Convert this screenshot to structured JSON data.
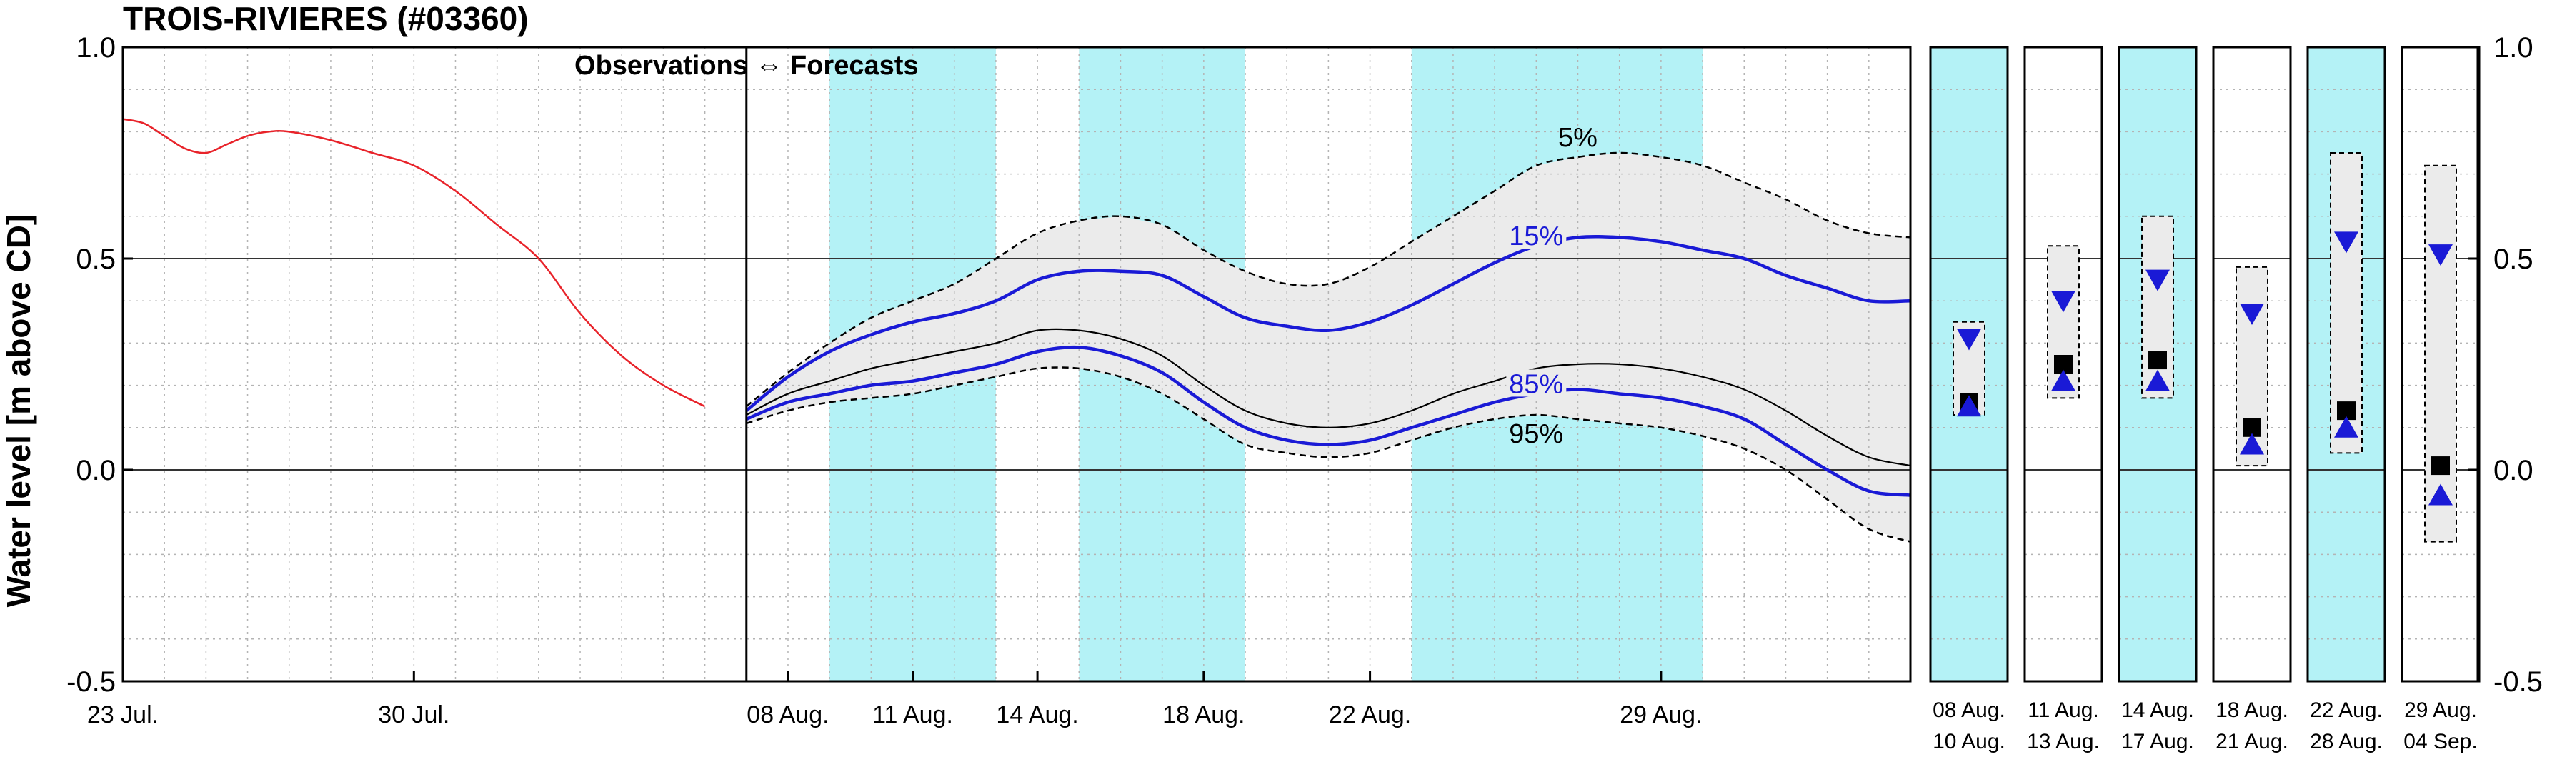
{
  "chart_data": {
    "type": "line",
    "title": "TROIS-RIVIERES (#03360)",
    "ylabel": "Water level [m above CD]",
    "ylim": [
      -0.5,
      1.0
    ],
    "yticks": [
      "1.0",
      "0.5",
      "0.0",
      "-0.5"
    ],
    "yticks_right": [
      "1.0",
      "0.5",
      "0.0",
      "-0.5"
    ],
    "x_ticks": [
      {
        "day": 0,
        "label": "23 Jul."
      },
      {
        "day": 7,
        "label": "30 Jul."
      },
      {
        "day": 16,
        "label": "08 Aug."
      },
      {
        "day": 19,
        "label": "11 Aug."
      },
      {
        "day": 22,
        "label": "14 Aug."
      },
      {
        "day": 26,
        "label": "18 Aug."
      },
      {
        "day": 30,
        "label": "22 Aug."
      },
      {
        "day": 37,
        "label": "29 Aug."
      }
    ],
    "x_range": [
      0,
      43
    ],
    "now_day": 15,
    "divider_label": "Observations ⇔ Forecasts",
    "grid": true,
    "shaded_periods": [
      [
        17,
        21
      ],
      [
        23,
        27
      ],
      [
        31,
        38
      ]
    ],
    "observations": {
      "color": "#e8232a",
      "x": [
        0,
        0.5,
        1,
        1.5,
        2,
        2.5,
        3,
        3.5,
        4,
        5,
        6,
        7,
        8,
        9,
        10,
        11,
        12,
        13,
        14
      ],
      "y": [
        0.83,
        0.82,
        0.79,
        0.76,
        0.75,
        0.77,
        0.79,
        0.8,
        0.8,
        0.78,
        0.75,
        0.72,
        0.66,
        0.58,
        0.5,
        0.37,
        0.27,
        0.2,
        0.15
      ]
    },
    "forecast_x": [
      15,
      16,
      17,
      18,
      19,
      20,
      21,
      22,
      23,
      24,
      25,
      26,
      27,
      28,
      29,
      30,
      31,
      32,
      33,
      34,
      35,
      36,
      37,
      38,
      39,
      40,
      41,
      42,
      43
    ],
    "forecast_series": [
      {
        "name": "5%",
        "style": "dashed",
        "color": "#000000",
        "values": [
          0.15,
          0.23,
          0.3,
          0.36,
          0.4,
          0.44,
          0.5,
          0.56,
          0.59,
          0.6,
          0.58,
          0.52,
          0.47,
          0.44,
          0.44,
          0.48,
          0.54,
          0.6,
          0.66,
          0.72,
          0.74,
          0.75,
          0.74,
          0.72,
          0.68,
          0.64,
          0.59,
          0.56,
          0.55
        ]
      },
      {
        "name": "15%",
        "style": "solid",
        "color": "#1a1ad6",
        "values": [
          0.14,
          0.22,
          0.28,
          0.32,
          0.35,
          0.37,
          0.4,
          0.45,
          0.47,
          0.47,
          0.46,
          0.41,
          0.36,
          0.34,
          0.33,
          0.35,
          0.39,
          0.44,
          0.49,
          0.53,
          0.55,
          0.55,
          0.54,
          0.52,
          0.5,
          0.46,
          0.43,
          0.4,
          0.4
        ]
      },
      {
        "name": "50%",
        "style": "thin",
        "color": "#000000",
        "values": [
          0.13,
          0.18,
          0.21,
          0.24,
          0.26,
          0.28,
          0.3,
          0.33,
          0.33,
          0.31,
          0.27,
          0.2,
          0.14,
          0.11,
          0.1,
          0.11,
          0.14,
          0.18,
          0.21,
          0.24,
          0.25,
          0.25,
          0.24,
          0.22,
          0.19,
          0.14,
          0.08,
          0.03,
          0.01
        ]
      },
      {
        "name": "85%",
        "style": "solid",
        "color": "#1a1ad6",
        "values": [
          0.12,
          0.16,
          0.18,
          0.2,
          0.21,
          0.23,
          0.25,
          0.28,
          0.29,
          0.27,
          0.23,
          0.16,
          0.1,
          0.07,
          0.06,
          0.07,
          0.1,
          0.13,
          0.16,
          0.18,
          0.19,
          0.18,
          0.17,
          0.15,
          0.12,
          0.06,
          0.0,
          -0.05,
          -0.06
        ]
      },
      {
        "name": "95%",
        "style": "dashed",
        "color": "#000000",
        "values": [
          0.11,
          0.14,
          0.16,
          0.17,
          0.18,
          0.2,
          0.22,
          0.24,
          0.24,
          0.22,
          0.18,
          0.12,
          0.06,
          0.04,
          0.03,
          0.04,
          0.07,
          0.1,
          0.12,
          0.13,
          0.12,
          0.11,
          0.1,
          0.08,
          0.05,
          0.0,
          -0.07,
          -0.14,
          -0.17
        ]
      }
    ],
    "percentile_labels": [
      {
        "text": "5%",
        "series": 0,
        "color": "#000000"
      },
      {
        "text": "15%",
        "series": 1,
        "color": "#1a1ad6"
      },
      {
        "text": "85%",
        "series": 3,
        "color": "#1a1ad6"
      },
      {
        "text": "95%",
        "series": 4,
        "color": "#000000"
      }
    ],
    "summary_panels": [
      {
        "line1": "08 Aug.",
        "line2": "10 Aug.",
        "shaded": true,
        "box": [
          0.13,
          0.35
        ],
        "square": 0.16,
        "down_triangle": 0.31,
        "up_triangle": 0.15
      },
      {
        "line1": "11 Aug.",
        "line2": "13 Aug.",
        "shaded": false,
        "box": [
          0.17,
          0.53
        ],
        "square": 0.25,
        "down_triangle": 0.4,
        "up_triangle": 0.21
      },
      {
        "line1": "14 Aug.",
        "line2": "17 Aug.",
        "shaded": true,
        "box": [
          0.17,
          0.6
        ],
        "square": 0.26,
        "down_triangle": 0.45,
        "up_triangle": 0.21
      },
      {
        "line1": "18 Aug.",
        "line2": "21 Aug.",
        "shaded": false,
        "box": [
          0.01,
          0.48
        ],
        "square": 0.1,
        "down_triangle": 0.37,
        "up_triangle": 0.06
      },
      {
        "line1": "22 Aug.",
        "line2": "28 Aug.",
        "shaded": true,
        "box": [
          0.04,
          0.75
        ],
        "square": 0.14,
        "down_triangle": 0.54,
        "up_triangle": 0.1
      },
      {
        "line1": "29 Aug.",
        "line2": "04 Sep.",
        "shaded": false,
        "box": [
          -0.17,
          0.72
        ],
        "square": 0.01,
        "down_triangle": 0.51,
        "up_triangle": -0.06
      }
    ],
    "colors": {
      "shade": "#b4f2f6",
      "band": "#ebebeb",
      "obs": "#e8232a",
      "blue": "#1a1ad6",
      "grid": "#b4b4b4",
      "square": "#000000",
      "triangle": "#1a1ad6"
    }
  }
}
